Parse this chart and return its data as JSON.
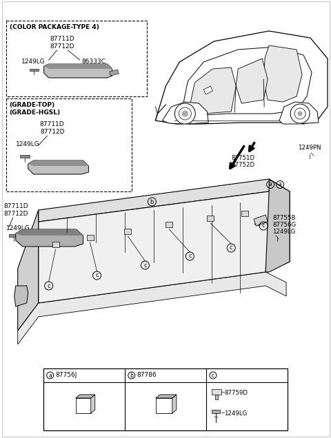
{
  "bg_color": "#ffffff",
  "box1_label": "(COLOR PACKAGE-TYPE 4)",
  "box1_parts": [
    "87711D",
    "87712D"
  ],
  "box1_subpart": "1249LG",
  "box1_part2": "86333C",
  "box2_label1": "(GRADE-TOP)",
  "box2_label2": "(GRADE-HGSL)",
  "box2_parts": [
    "87711D",
    "87712D"
  ],
  "box2_subpart": "1249LG",
  "std_parts": [
    "87711D",
    "87712D"
  ],
  "std_subpart": "1249LG",
  "wheel_parts": [
    "87751D",
    "87752D"
  ],
  "right_part": "1249PN",
  "right_clips": [
    "87755B",
    "87756G",
    "1249LG"
  ],
  "legend_a_part": "87756J",
  "legend_b_part": "87786",
  "legend_c_parts": [
    "87759D",
    "1249LG"
  ]
}
